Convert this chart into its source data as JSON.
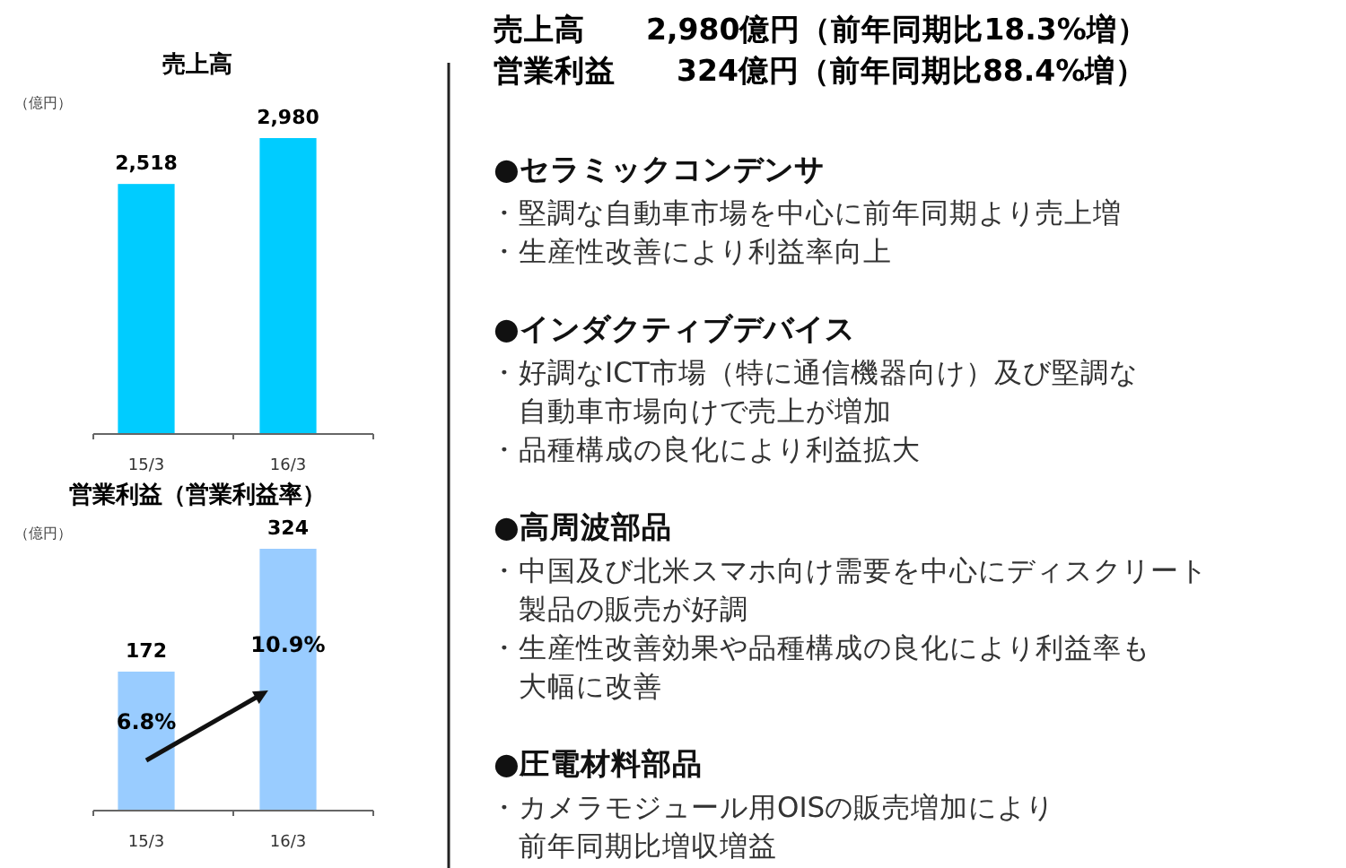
{
  "chart_data": [
    {
      "type": "bar",
      "title": "売上高",
      "ylabel": "（億円）",
      "categories": [
        "15/3",
        "16/3"
      ],
      "values": [
        2518,
        2980
      ],
      "color": "#00ccff",
      "value_labels": [
        "2,518",
        "2,980"
      ]
    },
    {
      "type": "bar",
      "title": "営業利益（営業利益率）",
      "ylabel": "（億円）",
      "categories": [
        "15/3",
        "16/3"
      ],
      "values": [
        172,
        324
      ],
      "color": "#99ccff",
      "data_labels": true,
      "annotations": [
        "6.8%",
        "10.9%"
      ]
    },
    {
      "type": "other",
      "title": "売上高　　2,980億円（前年同期比18.3%増）",
      "subtitle": "営業利益　　324億円（前年同期比88.4%増）",
      "annotations": [
        "●セラミックコンデンサ",
        "・堅調な自動車市場を中心に前年同期より売上増",
        "・生産性改善により利益率向上",
        "●インダクティブデバイス",
        "・好調なICT市場（特に通信機器向け）及び堅調な",
        "　自動車市場向けで売上が増加",
        "・品種構成の良化により利益拡大",
        "●高周波部品",
        "・中国及び北米スマホ向け需要を中心にディスクリート",
        "　製品の販売が好調",
        "・生産性改善効果や品種構成の良化により利益率も",
        "　大幅に改善",
        "●圧電材料部品",
        "・カメラモジュール用OISの販売増加により",
        "　前年同期比増収増益"
      ]
    }
  ]
}
